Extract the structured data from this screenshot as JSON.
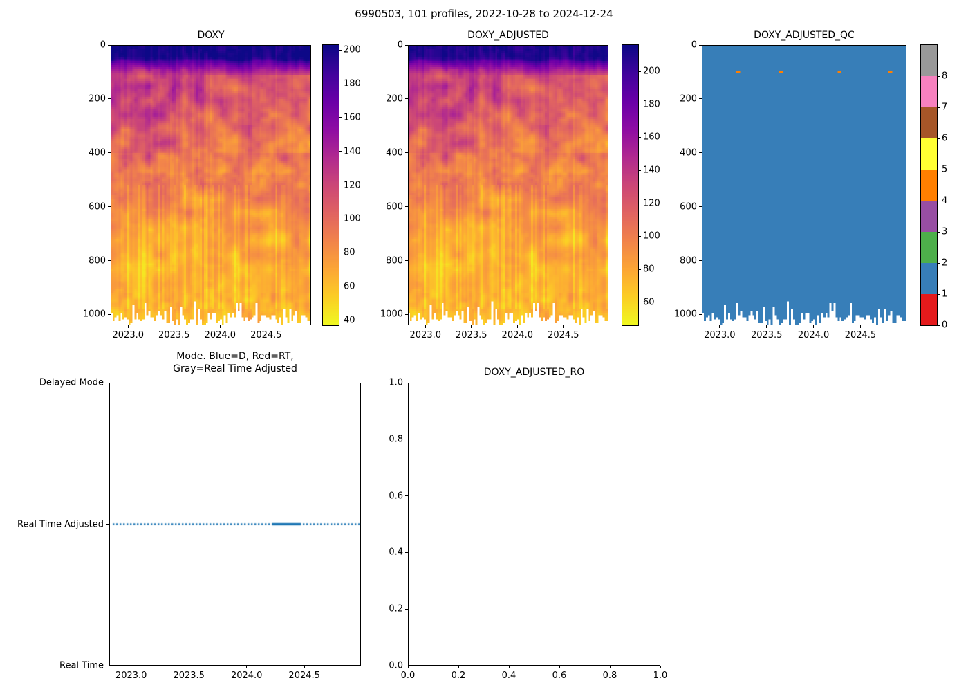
{
  "figure": {
    "suptitle": "6990503, 101 profiles, 2022-10-28 to 2024-12-24",
    "float_id": "6990503",
    "profile_count": "101 profiles",
    "date_range": "2022-10-28 to 2024-12-24",
    "background": "#ffffff"
  },
  "colors": {
    "mode_line": "#1f77b4",
    "qc_flag_1": "#377eb8",
    "text": "#000000",
    "background": "#ffffff"
  },
  "chart_data": [
    {
      "id": "doxy",
      "type": "heatmap",
      "title": "DOXY",
      "x_ticks": [
        "2023.0",
        "2023.5",
        "2024.0",
        "2024.5"
      ],
      "y_ticks": [
        "0",
        "200",
        "400",
        "600",
        "800",
        "1000"
      ],
      "x_range": [
        2022.81,
        2024.99
      ],
      "y_range_m": [
        0,
        1040
      ],
      "colormap": "plasma reversed (high values dark purple-blue, low values yellow)",
      "colorbar_ticks": [
        "200",
        "180",
        "160",
        "140",
        "120",
        "100",
        "80",
        "60",
        "40"
      ],
      "colorbar_range": [
        37,
        203
      ],
      "description": "Dissolved oxygen section vs time and depth: ~195-205 in upper 100 m (dark purple), patchy 90-145 between 150-500 m, 50-80 below 600 m (orange-yellow); ragged white gap below deepest sampled level (~950-1040 m)"
    },
    {
      "id": "doxy_adjusted",
      "type": "heatmap",
      "title": "DOXY_ADJUSTED",
      "x_ticks": [
        "2023.0",
        "2023.5",
        "2024.0",
        "2024.5"
      ],
      "y_ticks": [
        "0",
        "200",
        "400",
        "600",
        "800",
        "1000"
      ],
      "x_range": [
        2022.81,
        2024.99
      ],
      "y_range_m": [
        0,
        1040
      ],
      "colormap": "plasma reversed (high values dark purple-blue, low values yellow)",
      "colorbar_ticks": [
        "200",
        "180",
        "160",
        "140",
        "120",
        "100",
        "80",
        "60"
      ],
      "colorbar_range": [
        46,
        216
      ],
      "value_offset_vs_doxy": 9,
      "description": "Adjusted dissolved oxygen, same structure as DOXY with slightly higher values"
    },
    {
      "id": "doxy_adjusted_qc",
      "type": "heatmap_categorical",
      "title": "DOXY_ADJUSTED_QC",
      "x_ticks": [
        "2023.0",
        "2023.5",
        "2024.0",
        "2024.5"
      ],
      "y_ticks": [
        "0",
        "200",
        "400",
        "600",
        "800",
        "1000"
      ],
      "x_range": [
        2022.81,
        2024.99
      ],
      "y_range_m": [
        0,
        1040
      ],
      "colorbar_ticks": [
        "0",
        "1",
        "2",
        "3",
        "4",
        "5",
        "6",
        "7",
        "8"
      ],
      "colorbar_range": [
        0,
        9
      ],
      "flag_colors": [
        "#e41a1c",
        "#377eb8",
        "#4daf4a",
        "#984ea3",
        "#ff7f00",
        "#ffff33",
        "#a65628",
        "#f781bf",
        "#999999"
      ],
      "dominant_flag": 1,
      "anomalies": [
        {
          "x": 2023.17,
          "depth_m": 100,
          "flag": 4
        },
        {
          "x": 2023.63,
          "depth_m": 98,
          "flag": 4
        },
        {
          "x": 2024.28,
          "depth_m": 100,
          "flag": 4
        },
        {
          "x": 2024.82,
          "depth_m": 100,
          "flag": 4
        }
      ],
      "description": "QC flags: nearly all samples flag 1 (blue); a few isolated flag-4 (orange) points near 100 m; ragged white below deepest sampled level"
    },
    {
      "id": "mode",
      "type": "scatter",
      "title_lines": [
        "Mode. Blue=D, Red=RT,",
        "Gray=Real Time Adjusted"
      ],
      "x_ticks": [
        "2023.0",
        "2023.5",
        "2024.0",
        "2024.5"
      ],
      "x_range": [
        2022.81,
        2024.99
      ],
      "y_categories": [
        "Real Time",
        "Real Time Adjusted",
        "Delayed Mode"
      ],
      "series": [
        {
          "name": "processing-mode",
          "color": "#1f77b4",
          "y_category": "Real Time Adjusted",
          "x_start": 2022.84,
          "x_end": 2024.97,
          "marker": "dotted",
          "dense_segment": [
            2024.22,
            2024.47
          ]
        }
      ],
      "description": "All 101 profiles are in Real Time Adjusted mode (blue dotted line at middle level)"
    },
    {
      "id": "doxy_adjusted_ro",
      "type": "empty",
      "title": "DOXY_ADJUSTED_RO",
      "x_ticks": [
        "0.0",
        "0.2",
        "0.4",
        "0.6",
        "0.8",
        "1.0"
      ],
      "y_ticks": [
        "0.0",
        "0.2",
        "0.4",
        "0.6",
        "0.8",
        "1.0"
      ],
      "x_range": [
        0,
        1
      ],
      "y_range": [
        0,
        1
      ],
      "description": "Empty axes (no data plotted)"
    }
  ]
}
